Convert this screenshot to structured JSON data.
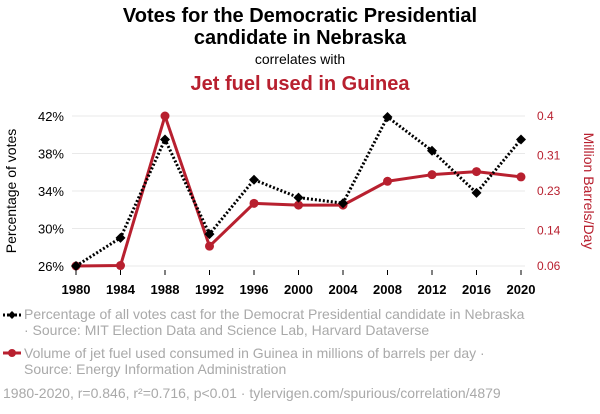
{
  "header": {
    "title_line1": "Votes for the Democratic Presidential",
    "title_line2": "candidate in Nebraska",
    "correlates": "correlates with",
    "title2": "Jet fuel used in Guinea"
  },
  "legend": {
    "series1_line1": "Percentage of all votes cast for the Democrat Presidential candidate in Nebraska",
    "series1_line2": "· Source: MIT Election Data and Science Lab, Harvard Dataverse",
    "series2_line1": "Volume of jet fuel used consumed in Guinea in millions of barrels per day ·",
    "series2_line2": "Source: Energy Information Administration"
  },
  "footer": "1980-2020, r=0.846, r²=0.716, p<0.01 · tylervigen.com/spurious/correlation/4879",
  "colors": {
    "series1": "#000000",
    "series2": "#b8202f",
    "grid": "#e9e9e9"
  },
  "chart_data": {
    "type": "line",
    "title": "Votes for the Democratic Presidential candidate in Nebraska correlates with Jet fuel used in Guinea",
    "x": [
      1980,
      1984,
      1988,
      1992,
      1996,
      2000,
      2004,
      2008,
      2012,
      2016,
      2020
    ],
    "y_left": {
      "label": "Percentage of votes",
      "ylim": [
        26,
        42
      ],
      "ticks": [
        26,
        30,
        34,
        38,
        42
      ],
      "tick_labels": [
        "26%",
        "30%",
        "34%",
        "38%",
        "42%"
      ]
    },
    "y_right": {
      "label": "Million Barrels/Day",
      "ylim": [
        0.06,
        0.4
      ],
      "ticks": [
        0.06,
        0.14,
        0.23,
        0.31,
        0.4
      ],
      "tick_labels": [
        "0.06",
        "0.14",
        "0.23",
        "0.31",
        "0.4"
      ]
    },
    "series": [
      {
        "name": "Percentage of all votes cast for the Democrat Presidential candidate in Nebraska",
        "axis": "left",
        "style": "dotted",
        "marker": "diamond",
        "values": [
          26.0,
          29.0,
          39.5,
          29.4,
          35.2,
          33.3,
          32.7,
          41.9,
          38.3,
          33.8,
          39.5
        ]
      },
      {
        "name": "Volume of jet fuel used consumed in Guinea in millions of barrels per day",
        "axis": "right",
        "style": "solid",
        "marker": "circle",
        "values": [
          0.06,
          0.061,
          0.4,
          0.105,
          0.202,
          0.198,
          0.198,
          0.252,
          0.267,
          0.274,
          0.262
        ]
      }
    ]
  }
}
